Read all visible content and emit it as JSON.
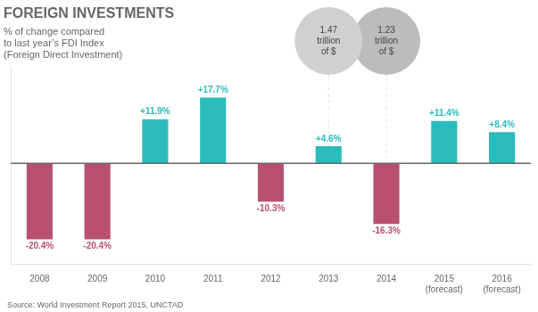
{
  "chart_data": {
    "type": "bar",
    "title": "FOREIGN INVESTMENTS",
    "subtitle": [
      "% of change compared",
      "to last year’s FDI Index",
      "(Foreign Direct Investment)"
    ],
    "source": "Source: World Investment Report 2015, UNCTAD",
    "categories": [
      "2008",
      "2009",
      "2010",
      "2011",
      "2012",
      "2013",
      "2014",
      "2015\n(forecast)",
      "2016\n(forecast)"
    ],
    "values": [
      -20.4,
      -20.4,
      11.9,
      17.7,
      -10.3,
      4.6,
      -16.3,
      11.4,
      8.4
    ],
    "value_labels": [
      "-20.4%",
      "-20.4%",
      "+11.9%",
      "+17.7%",
      "-10.3%",
      "+4.6%",
      "-16.3%",
      "+11.4%",
      "+8.4%"
    ],
    "data_labels": true,
    "colors": [
      "#b85070",
      "#b85070",
      "#2abcbc",
      "#2abcbc",
      "#b85070",
      "#2abcbc",
      "#b85070",
      "#2abcbc",
      "#2abcbc"
    ],
    "ylim": [
      -27,
      26
    ],
    "grid": false,
    "tick_labels": "x",
    "annotations": [
      {
        "text": "1.47\ntrillion\nof $",
        "category": "2013",
        "color": "#d0d0d0"
      },
      {
        "text": "1.23\ntrillion\nof $",
        "category": "2014",
        "color": "#bcbcbc"
      }
    ]
  }
}
